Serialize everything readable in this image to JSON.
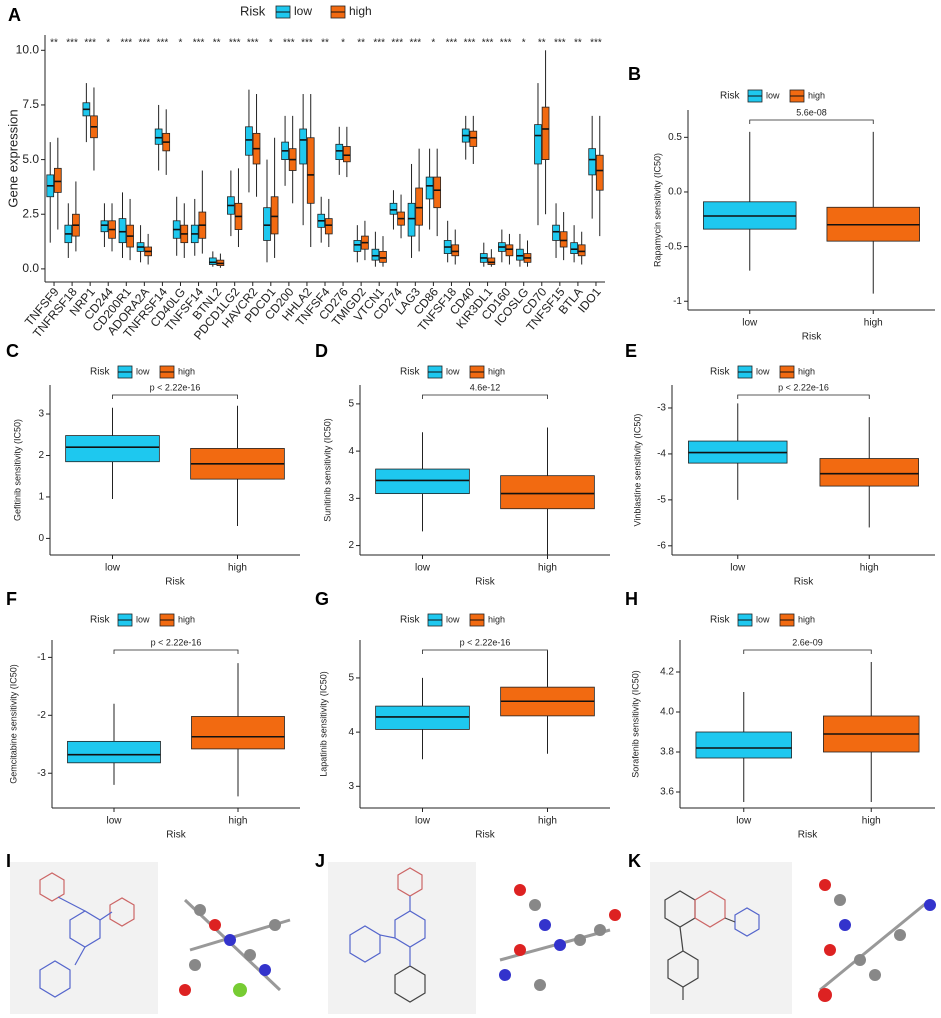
{
  "chart_data": [
    {
      "type": "box",
      "label": "A",
      "legend_title": "Risk",
      "ylabel": "Gene expression",
      "categories": [
        "TNFSF9",
        "TNFRSF18",
        "NRP1",
        "CD244",
        "CD200R1",
        "ADORA2A",
        "TNFRSF14",
        "CD40LG",
        "TNFSF14",
        "BTNL2",
        "PDCD1LG2",
        "HAVCR2",
        "PDCD1",
        "CD200",
        "HHLA2",
        "TNFSF4",
        "CD276",
        "TMIGD2",
        "VTCN1",
        "CD274",
        "LAG3",
        "CD86",
        "TNFSF18",
        "CD40",
        "KIR3DL1",
        "CD160",
        "ICOSLG",
        "CD70",
        "TNFSF15",
        "BTLA",
        "IDO1"
      ],
      "significance": [
        "**",
        "***",
        "***",
        "*",
        "***",
        "***",
        "***",
        "*",
        "***",
        "**",
        "***",
        "***",
        "*",
        "***",
        "***",
        "**",
        "*",
        "**",
        "***",
        "***",
        "***",
        "*",
        "***",
        "***",
        "***",
        "***",
        "*",
        "**",
        "***",
        "**",
        "***"
      ],
      "ylim": [
        -0.6,
        10.7
      ],
      "yticks": [
        {
          "value": 0,
          "label": "0.0"
        },
        2.5,
        {
          "value": 5,
          "label": "5.0"
        },
        7.5,
        {
          "value": 10,
          "label": "10.0"
        }
      ],
      "series": [
        {
          "name": "low",
          "color": "#1ec8ef",
          "lo": [
            1.2,
            0.5,
            5.8,
            1.0,
            0.5,
            0.3,
            4.5,
            0.6,
            0.6,
            0.1,
            1.5,
            3.5,
            0.3,
            3.8,
            2.0,
            1.2,
            4.3,
            0.3,
            0.1,
            1.8,
            0.5,
            1.8,
            0.3,
            5.0,
            0.1,
            0.3,
            0.1,
            2.0,
            0.5,
            0.3,
            2.3
          ],
          "q1": [
            3.3,
            1.2,
            7.0,
            1.7,
            1.2,
            0.8,
            5.7,
            1.4,
            1.2,
            0.2,
            2.5,
            5.2,
            1.3,
            5.0,
            4.8,
            1.9,
            5.0,
            0.8,
            0.4,
            2.5,
            1.5,
            3.2,
            0.7,
            5.8,
            0.3,
            0.8,
            0.4,
            4.8,
            1.3,
            0.7,
            4.3
          ],
          "median": [
            3.8,
            1.6,
            7.3,
            2.0,
            1.7,
            1.0,
            6.0,
            1.8,
            1.6,
            0.3,
            2.9,
            5.9,
            2.0,
            5.4,
            5.9,
            2.2,
            5.4,
            1.1,
            0.6,
            2.7,
            2.3,
            3.8,
            1.0,
            6.1,
            0.5,
            1.0,
            0.6,
            6.1,
            1.7,
            0.9,
            5.0
          ],
          "q3": [
            4.3,
            2.0,
            7.6,
            2.2,
            2.3,
            1.2,
            6.4,
            2.2,
            2.0,
            0.5,
            3.3,
            6.5,
            2.8,
            5.8,
            6.4,
            2.5,
            5.7,
            1.3,
            0.9,
            3.0,
            3.0,
            4.2,
            1.3,
            6.4,
            0.7,
            1.2,
            0.9,
            6.6,
            2.0,
            1.2,
            5.5
          ],
          "hi": [
            5.8,
            3.0,
            8.5,
            3.0,
            3.5,
            2.0,
            7.5,
            3.3,
            3.2,
            0.8,
            4.5,
            8.2,
            5.0,
            7.0,
            8.0,
            3.3,
            6.5,
            2.0,
            1.7,
            3.6,
            4.8,
            5.5,
            2.2,
            7.0,
            1.2,
            1.8,
            1.6,
            8.5,
            3.0,
            2.0,
            7.0
          ]
        },
        {
          "name": "high",
          "color": "#f26a11",
          "lo": [
            1.8,
            0.8,
            4.5,
            0.8,
            0.4,
            0.2,
            4.3,
            0.5,
            0.7,
            0.05,
            1.0,
            3.3,
            0.5,
            3.0,
            1.0,
            1.0,
            4.2,
            0.4,
            0.1,
            1.4,
            0.8,
            1.5,
            0.2,
            4.8,
            0.1,
            0.2,
            0.1,
            2.5,
            0.4,
            0.2,
            1.5
          ],
          "q1": [
            3.5,
            1.5,
            6.0,
            1.4,
            1.0,
            0.6,
            5.4,
            1.2,
            1.4,
            0.15,
            1.8,
            4.8,
            1.6,
            4.5,
            3.0,
            1.6,
            4.9,
            0.9,
            0.3,
            2.0,
            2.0,
            2.8,
            0.6,
            5.6,
            0.2,
            0.6,
            0.3,
            5.0,
            1.0,
            0.6,
            3.6
          ],
          "median": [
            4.0,
            2.0,
            6.5,
            1.8,
            1.5,
            0.8,
            5.8,
            1.6,
            2.0,
            0.25,
            2.4,
            5.5,
            2.4,
            5.0,
            4.3,
            2.0,
            5.2,
            1.2,
            0.5,
            2.3,
            2.8,
            3.6,
            0.8,
            6.0,
            0.3,
            0.9,
            0.5,
            6.4,
            1.3,
            0.8,
            4.5
          ],
          "q3": [
            4.6,
            2.5,
            7.0,
            2.2,
            2.0,
            1.0,
            6.2,
            2.0,
            2.6,
            0.4,
            3.0,
            6.2,
            3.3,
            5.5,
            6.0,
            2.3,
            5.6,
            1.5,
            0.8,
            2.6,
            3.7,
            4.2,
            1.1,
            6.3,
            0.5,
            1.1,
            0.7,
            7.4,
            1.7,
            1.1,
            5.2
          ],
          "hi": [
            6.0,
            4.0,
            8.3,
            3.0,
            3.2,
            1.6,
            7.3,
            3.0,
            4.5,
            0.7,
            4.6,
            8.0,
            6.0,
            7.0,
            8.0,
            3.2,
            6.5,
            2.2,
            1.5,
            3.4,
            5.5,
            5.5,
            1.8,
            7.0,
            0.9,
            1.6,
            1.3,
            10.0,
            2.6,
            1.7,
            7.0
          ]
        }
      ]
    },
    {
      "type": "box",
      "label": "B",
      "legend_title": "Risk",
      "ylabel": "Rapamycin sensitivity (IC50)",
      "xlabel": "Risk",
      "pvalue": "5.6e-08",
      "categories": [
        "low",
        "high"
      ],
      "ylim": [
        -1.08,
        0.75
      ],
      "yticks": [
        -1.0,
        -0.5,
        {
          "value": 0,
          "label": "0.0"
        },
        0.5
      ],
      "series": [
        {
          "name": "low",
          "color": "#1ec8ef",
          "lo": [
            -0.72
          ],
          "q1": [
            -0.34
          ],
          "median": [
            -0.22
          ],
          "q3": [
            -0.09
          ],
          "hi": [
            0.55
          ]
        },
        {
          "name": "high",
          "color": "#f26a11",
          "lo": [
            -0.93
          ],
          "q1": [
            -0.45
          ],
          "median": [
            -0.3
          ],
          "q3": [
            -0.14
          ],
          "hi": [
            0.55
          ]
        }
      ]
    },
    {
      "type": "box",
      "label": "C",
      "legend_title": "Risk",
      "ylabel": "Gefitinib sensitivity (IC50)",
      "xlabel": "Risk",
      "pvalue": "p < 2.22e-16",
      "categories": [
        "low",
        "high"
      ],
      "ylim": [
        -0.4,
        3.7
      ],
      "yticks": [
        0,
        1,
        2,
        3
      ],
      "series": [
        {
          "name": "low",
          "color": "#1ec8ef",
          "lo": [
            0.95
          ],
          "q1": [
            1.85
          ],
          "median": [
            2.2
          ],
          "q3": [
            2.48
          ],
          "hi": [
            3.15
          ]
        },
        {
          "name": "high",
          "color": "#f26a11",
          "lo": [
            0.3
          ],
          "q1": [
            1.43
          ],
          "median": [
            1.8
          ],
          "q3": [
            2.17
          ],
          "hi": [
            3.2
          ]
        }
      ]
    },
    {
      "type": "box",
      "label": "D",
      "legend_title": "Risk",
      "ylabel": "Sunitinib sensitivity (IC50)",
      "xlabel": "Risk",
      "pvalue": "4.6e-12",
      "categories": [
        "low",
        "high"
      ],
      "ylim": [
        1.8,
        5.4
      ],
      "yticks": [
        2,
        3,
        4,
        5
      ],
      "series": [
        {
          "name": "low",
          "color": "#1ec8ef",
          "lo": [
            2.3
          ],
          "q1": [
            3.1
          ],
          "median": [
            3.38
          ],
          "q3": [
            3.62
          ],
          "hi": [
            4.4
          ]
        },
        {
          "name": "high",
          "color": "#f26a11",
          "lo": [
            1.8
          ],
          "q1": [
            2.78
          ],
          "median": [
            3.1
          ],
          "q3": [
            3.48
          ],
          "hi": [
            4.5
          ]
        }
      ]
    },
    {
      "type": "box",
      "label": "E",
      "legend_title": "Risk",
      "ylabel": "Vinblastine sensitivity (IC50)",
      "xlabel": "Risk",
      "pvalue": "p < 2.22e-16",
      "categories": [
        "low",
        "high"
      ],
      "ylim": [
        -6.2,
        -2.5
      ],
      "yticks": [
        -6,
        -5,
        -4,
        -3
      ],
      "series": [
        {
          "name": "low",
          "color": "#1ec8ef",
          "lo": [
            -5.0
          ],
          "q1": [
            -4.2
          ],
          "median": [
            -3.97
          ],
          "q3": [
            -3.72
          ],
          "hi": [
            -2.9
          ]
        },
        {
          "name": "high",
          "color": "#f26a11",
          "lo": [
            -5.6
          ],
          "q1": [
            -4.7
          ],
          "median": [
            -4.43
          ],
          "q3": [
            -4.1
          ],
          "hi": [
            -3.2
          ]
        }
      ]
    },
    {
      "type": "box",
      "label": "F",
      "legend_title": "Risk",
      "ylabel": "Gemcitabine sensitivity (IC50)",
      "xlabel": "Risk",
      "pvalue": "p < 2.22e-16",
      "categories": [
        "low",
        "high"
      ],
      "ylim": [
        -3.6,
        -0.7
      ],
      "yticks": [
        -3,
        -2,
        -1
      ],
      "series": [
        {
          "name": "low",
          "color": "#1ec8ef",
          "lo": [
            -3.2
          ],
          "q1": [
            -2.82
          ],
          "median": [
            -2.68
          ],
          "q3": [
            -2.45
          ],
          "hi": [
            -1.8
          ]
        },
        {
          "name": "high",
          "color": "#f26a11",
          "lo": [
            -3.4
          ],
          "q1": [
            -2.58
          ],
          "median": [
            -2.37
          ],
          "q3": [
            -2.02
          ],
          "hi": [
            -1.1
          ]
        }
      ]
    },
    {
      "type": "box",
      "label": "G",
      "legend_title": "Risk",
      "ylabel": "Lapatinib sensitivity (IC50)",
      "xlabel": "Risk",
      "pvalue": "p < 2.22e-16",
      "categories": [
        "low",
        "high"
      ],
      "ylim": [
        2.6,
        5.7
      ],
      "yticks": [
        3,
        4,
        5
      ],
      "series": [
        {
          "name": "low",
          "color": "#1ec8ef",
          "lo": [
            3.5
          ],
          "q1": [
            4.05
          ],
          "median": [
            4.28
          ],
          "q3": [
            4.48
          ],
          "hi": [
            5.0
          ]
        },
        {
          "name": "high",
          "color": "#f26a11",
          "lo": [
            3.6
          ],
          "q1": [
            4.3
          ],
          "median": [
            4.57
          ],
          "q3": [
            4.83
          ],
          "hi": [
            5.5
          ]
        }
      ]
    },
    {
      "type": "box",
      "label": "H",
      "legend_title": "Risk",
      "ylabel": "Sorafenib sensitivity (IC50)",
      "xlabel": "Risk",
      "pvalue": "2.6e-09",
      "categories": [
        "low",
        "high"
      ],
      "ylim": [
        3.52,
        4.36
      ],
      "yticks": [
        3.6,
        3.8,
        {
          "value": 4,
          "label": "4.0"
        },
        4.2
      ],
      "series": [
        {
          "name": "low",
          "color": "#1ec8ef",
          "lo": [
            3.55
          ],
          "q1": [
            3.77
          ],
          "median": [
            3.82
          ],
          "q3": [
            3.9
          ],
          "hi": [
            4.1
          ]
        },
        {
          "name": "high",
          "color": "#f26a11",
          "lo": [
            3.55
          ],
          "q1": [
            3.8
          ],
          "median": [
            3.89
          ],
          "q3": [
            3.98
          ],
          "hi": [
            4.25
          ]
        }
      ]
    }
  ],
  "structure_panels": [
    {
      "label": "I"
    },
    {
      "label": "J"
    },
    {
      "label": "K"
    }
  ]
}
